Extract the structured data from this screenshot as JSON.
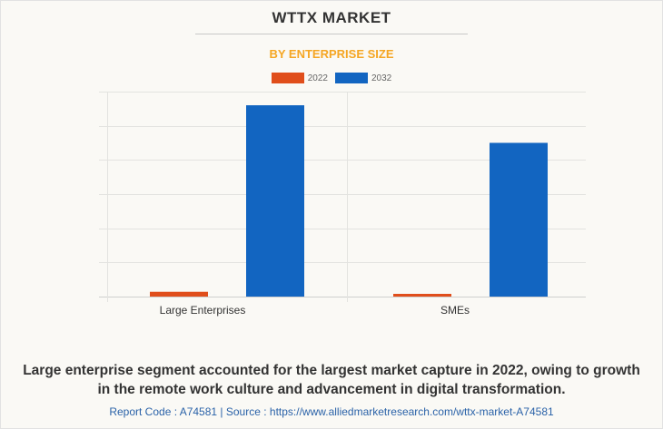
{
  "header": {
    "title": "WTTX MARKET",
    "subtitle": "BY ENTERPRISE SIZE"
  },
  "colors": {
    "series_2022": "#e04e1b",
    "series_2032": "#1265c1",
    "subtitle": "#f5a623",
    "source_link": "#2a62a8"
  },
  "chart_data": {
    "type": "bar",
    "title": "WTTX MARKET",
    "subtitle": "BY ENTERPRISE SIZE",
    "categories": [
      "Large Enterprises",
      "SMEs"
    ],
    "series": [
      {
        "name": "2022",
        "values": [
          0.14,
          0.08
        ]
      },
      {
        "name": "2032",
        "values": [
          5.6,
          4.5
        ]
      }
    ],
    "xlabel": "",
    "ylabel": "",
    "ylim": [
      0,
      6
    ],
    "y_ticks_labeled": false,
    "grid": true,
    "legend": "top-center"
  },
  "footer": {
    "caption_line1": "Large enterprise segment accounted for the largest market capture in 2022, owing to growth",
    "caption_line2": "in the remote work culture and advancement in digital transformation.",
    "source": "Report Code : A74581  |  Source : https://www.alliedmarketresearch.com/wttx-market-A74581"
  }
}
